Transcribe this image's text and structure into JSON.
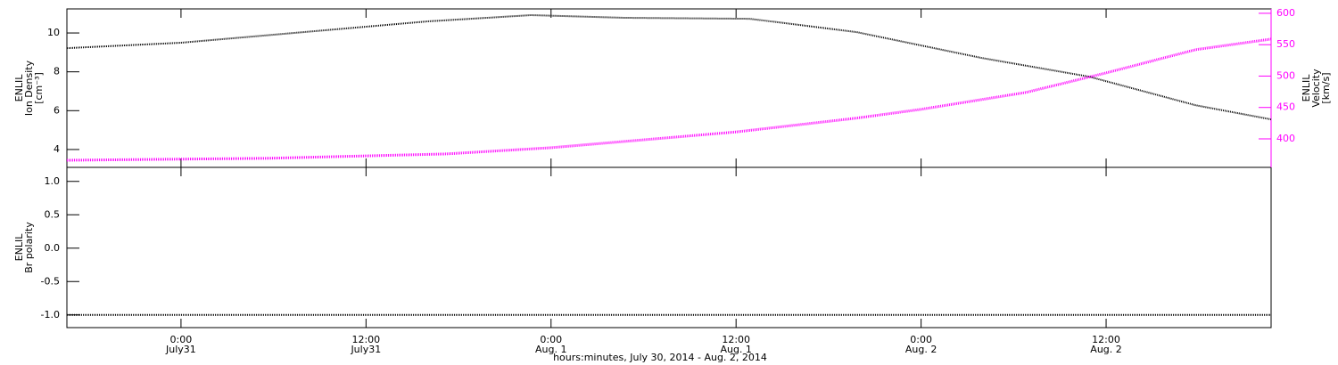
{
  "chart_data": [
    {
      "type": "line",
      "ylabel": [
        "ENLIL",
        "Ion Density",
        "[cm⁻³]"
      ],
      "y2label": [
        "ENLIL",
        "Velocity",
        "[km/s]"
      ],
      "ylim": [
        3.08,
        11.24
      ],
      "yticks": [
        4,
        6,
        8,
        10
      ],
      "y2lim": [
        354.6,
        607
      ],
      "y2ticks": [
        400,
        450,
        500,
        550,
        600
      ],
      "series": [
        {
          "color": "#000000",
          "x": [
            -7.4,
            0,
            8,
            16,
            22.7,
            28.8,
            36.9,
            43.8,
            51.9,
            58.9,
            65.8,
            70.7
          ],
          "values": [
            9.22,
            9.5,
            10.05,
            10.6,
            10.92,
            10.78,
            10.73,
            10.05,
            8.72,
            7.75,
            6.28,
            5.55
          ]
        },
        {
          "color": "#ff00ff",
          "axis": "y2",
          "x": [
            -7.4,
            5.67,
            17.2,
            24,
            36,
            43.8,
            48,
            54.8,
            60,
            65.8,
            70.7
          ],
          "values": [
            366,
            369,
            376,
            386,
            411,
            433,
            447,
            474,
            505,
            542,
            559
          ]
        }
      ]
    },
    {
      "type": "line",
      "ylabel": [
        "ENLIL",
        "Br polarity"
      ],
      "xlabel": "hours:minutes, July 30, 2014 - Aug. 2, 2014",
      "xlim": [
        -7.4,
        70.7
      ],
      "xticks": [
        {
          "value": 0,
          "label": "0:00\nJuly31"
        },
        {
          "value": 12,
          "label": "12:00\nJuly31"
        },
        {
          "value": 24,
          "label": "0:00\nAug. 1"
        },
        {
          "value": 36,
          "label": "12:00\nAug. 1"
        },
        {
          "value": 48,
          "label": "0:00\nAug. 2"
        },
        {
          "value": 60,
          "label": "12:00\nAug. 2"
        }
      ],
      "ylim": [
        -1.19,
        1.21
      ],
      "yticks": [
        {
          "value": -1,
          "label": "-1.0"
        },
        {
          "value": -0.5,
          "label": "-0.5"
        },
        {
          "value": 0,
          "label": "0.0"
        },
        {
          "value": 0.5,
          "label": "0.5"
        },
        {
          "value": 1,
          "label": "1.0"
        }
      ],
      "series": [
        {
          "color": "#000000",
          "x": [
            -7.4,
            70.7
          ],
          "values": [
            -1,
            -1
          ]
        }
      ]
    }
  ]
}
